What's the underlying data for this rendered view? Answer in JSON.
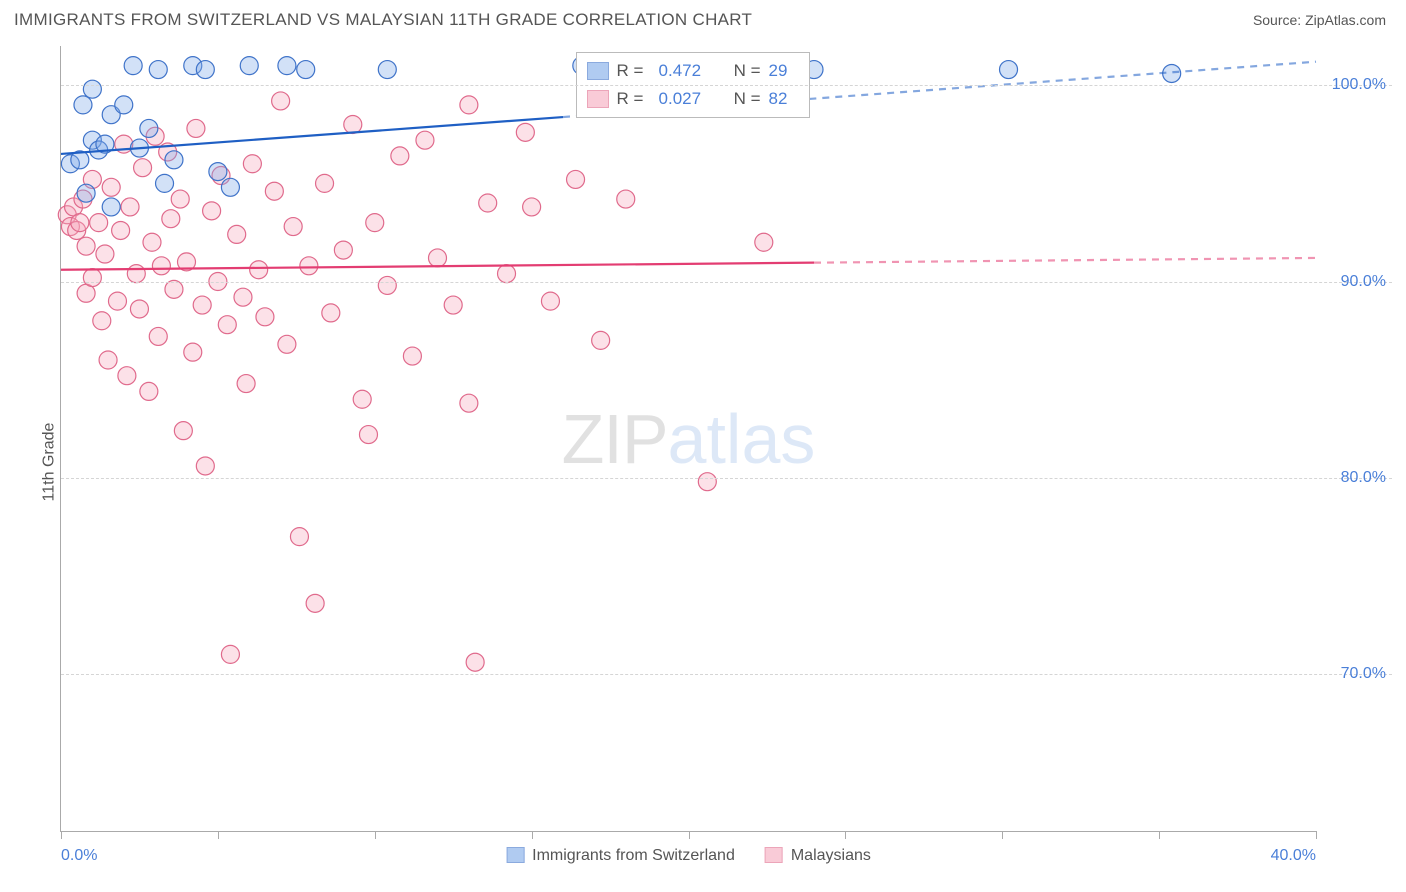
{
  "title": "IMMIGRANTS FROM SWITZERLAND VS MALAYSIAN 11TH GRADE CORRELATION CHART",
  "source_label": "Source: ZipAtlas.com",
  "y_axis_label": "11th Grade",
  "watermark": {
    "part1": "ZIP",
    "part2": "atlas"
  },
  "chart": {
    "type": "scatter",
    "background_color": "#ffffff",
    "grid_color": "#d5d5d5",
    "axis_color": "#aaaaaa",
    "text_color": "#555555",
    "value_color": "#4a7fd8",
    "xlim": [
      0,
      40
    ],
    "ylim": [
      62,
      102
    ],
    "x_ticks": [
      0,
      5,
      10,
      15,
      20,
      25,
      30,
      35,
      40
    ],
    "x_tick_labels": {
      "0": "0.0%",
      "40": "40.0%"
    },
    "y_gridlines": [
      70,
      80,
      90,
      100
    ],
    "y_tick_labels": [
      "70.0%",
      "80.0%",
      "90.0%",
      "100.0%"
    ],
    "marker_radius": 9,
    "marker_opacity": 0.35,
    "line_width": 2.2
  },
  "series": [
    {
      "id": "A",
      "label": "Immigrants from Switzerland",
      "fill_color": "#7da9e8",
      "stroke_color": "#3f73c9",
      "line_color": "#1f5fc4",
      "R": "0.472",
      "N": "29",
      "trend": {
        "x1": 0,
        "y1": 96.5,
        "x2": 40,
        "y2": 101.2,
        "solid_until_x": 16
      },
      "points": [
        [
          0.3,
          96.0
        ],
        [
          0.6,
          96.2
        ],
        [
          0.7,
          99.0
        ],
        [
          0.8,
          94.5
        ],
        [
          1.0,
          97.2
        ],
        [
          1.0,
          99.8
        ],
        [
          1.2,
          96.7
        ],
        [
          1.4,
          97.0
        ],
        [
          1.6,
          98.5
        ],
        [
          1.6,
          93.8
        ],
        [
          2.0,
          99.0
        ],
        [
          2.3,
          101.0
        ],
        [
          2.5,
          96.8
        ],
        [
          2.8,
          97.8
        ],
        [
          3.1,
          100.8
        ],
        [
          3.3,
          95.0
        ],
        [
          3.6,
          96.2
        ],
        [
          4.2,
          101.0
        ],
        [
          4.6,
          100.8
        ],
        [
          5.0,
          95.6
        ],
        [
          5.4,
          94.8
        ],
        [
          6.0,
          101.0
        ],
        [
          7.2,
          101.0
        ],
        [
          7.8,
          100.8
        ],
        [
          10.4,
          100.8
        ],
        [
          16.6,
          101.0
        ],
        [
          24.0,
          100.8
        ],
        [
          30.2,
          100.8
        ],
        [
          35.4,
          100.6
        ]
      ]
    },
    {
      "id": "B",
      "label": "Malaysians",
      "fill_color": "#f6a9bd",
      "stroke_color": "#e06a8c",
      "line_color": "#e33d72",
      "R": "0.027",
      "N": "82",
      "trend": {
        "x1": 0,
        "y1": 90.6,
        "x2": 40,
        "y2": 91.2,
        "solid_until_x": 24
      },
      "points": [
        [
          0.2,
          93.4
        ],
        [
          0.3,
          92.8
        ],
        [
          0.4,
          93.8
        ],
        [
          0.5,
          92.6
        ],
        [
          0.6,
          93.0
        ],
        [
          0.7,
          94.2
        ],
        [
          0.8,
          91.8
        ],
        [
          0.8,
          89.4
        ],
        [
          1.0,
          90.2
        ],
        [
          1.0,
          95.2
        ],
        [
          1.2,
          93.0
        ],
        [
          1.3,
          88.0
        ],
        [
          1.4,
          91.4
        ],
        [
          1.5,
          86.0
        ],
        [
          1.6,
          94.8
        ],
        [
          1.8,
          89.0
        ],
        [
          1.9,
          92.6
        ],
        [
          2.0,
          97.0
        ],
        [
          2.1,
          85.2
        ],
        [
          2.2,
          93.8
        ],
        [
          2.4,
          90.4
        ],
        [
          2.5,
          88.6
        ],
        [
          2.6,
          95.8
        ],
        [
          2.8,
          84.4
        ],
        [
          2.9,
          92.0
        ],
        [
          3.0,
          97.4
        ],
        [
          3.1,
          87.2
        ],
        [
          3.2,
          90.8
        ],
        [
          3.4,
          96.6
        ],
        [
          3.5,
          93.2
        ],
        [
          3.6,
          89.6
        ],
        [
          3.8,
          94.2
        ],
        [
          3.9,
          82.4
        ],
        [
          4.0,
          91.0
        ],
        [
          4.2,
          86.4
        ],
        [
          4.3,
          97.8
        ],
        [
          4.5,
          88.8
        ],
        [
          4.6,
          80.6
        ],
        [
          4.8,
          93.6
        ],
        [
          5.0,
          90.0
        ],
        [
          5.1,
          95.4
        ],
        [
          5.3,
          87.8
        ],
        [
          5.4,
          71.0
        ],
        [
          5.6,
          92.4
        ],
        [
          5.8,
          89.2
        ],
        [
          5.9,
          84.8
        ],
        [
          6.1,
          96.0
        ],
        [
          6.3,
          90.6
        ],
        [
          6.5,
          88.2
        ],
        [
          6.8,
          94.6
        ],
        [
          7.0,
          99.2
        ],
        [
          7.2,
          86.8
        ],
        [
          7.4,
          92.8
        ],
        [
          7.6,
          77.0
        ],
        [
          7.9,
          90.8
        ],
        [
          8.1,
          73.6
        ],
        [
          8.4,
          95.0
        ],
        [
          8.6,
          88.4
        ],
        [
          9.0,
          91.6
        ],
        [
          9.3,
          98.0
        ],
        [
          9.6,
          84.0
        ],
        [
          10.0,
          93.0
        ],
        [
          10.4,
          89.8
        ],
        [
          10.8,
          96.4
        ],
        [
          11.2,
          86.2
        ],
        [
          11.6,
          97.2
        ],
        [
          12.0,
          91.2
        ],
        [
          12.5,
          88.8
        ],
        [
          13.0,
          99.0
        ],
        [
          13.2,
          70.6
        ],
        [
          13.6,
          94.0
        ],
        [
          14.2,
          90.4
        ],
        [
          14.8,
          97.6
        ],
        [
          15.0,
          93.8
        ],
        [
          15.6,
          89.0
        ],
        [
          16.4,
          95.2
        ],
        [
          17.2,
          87.0
        ],
        [
          18.0,
          94.2
        ],
        [
          20.6,
          79.8
        ],
        [
          22.4,
          92.0
        ],
        [
          13.0,
          83.8
        ],
        [
          9.8,
          82.2
        ]
      ]
    }
  ],
  "legend_top": {
    "r_label": "R =",
    "n_label": "N ="
  }
}
